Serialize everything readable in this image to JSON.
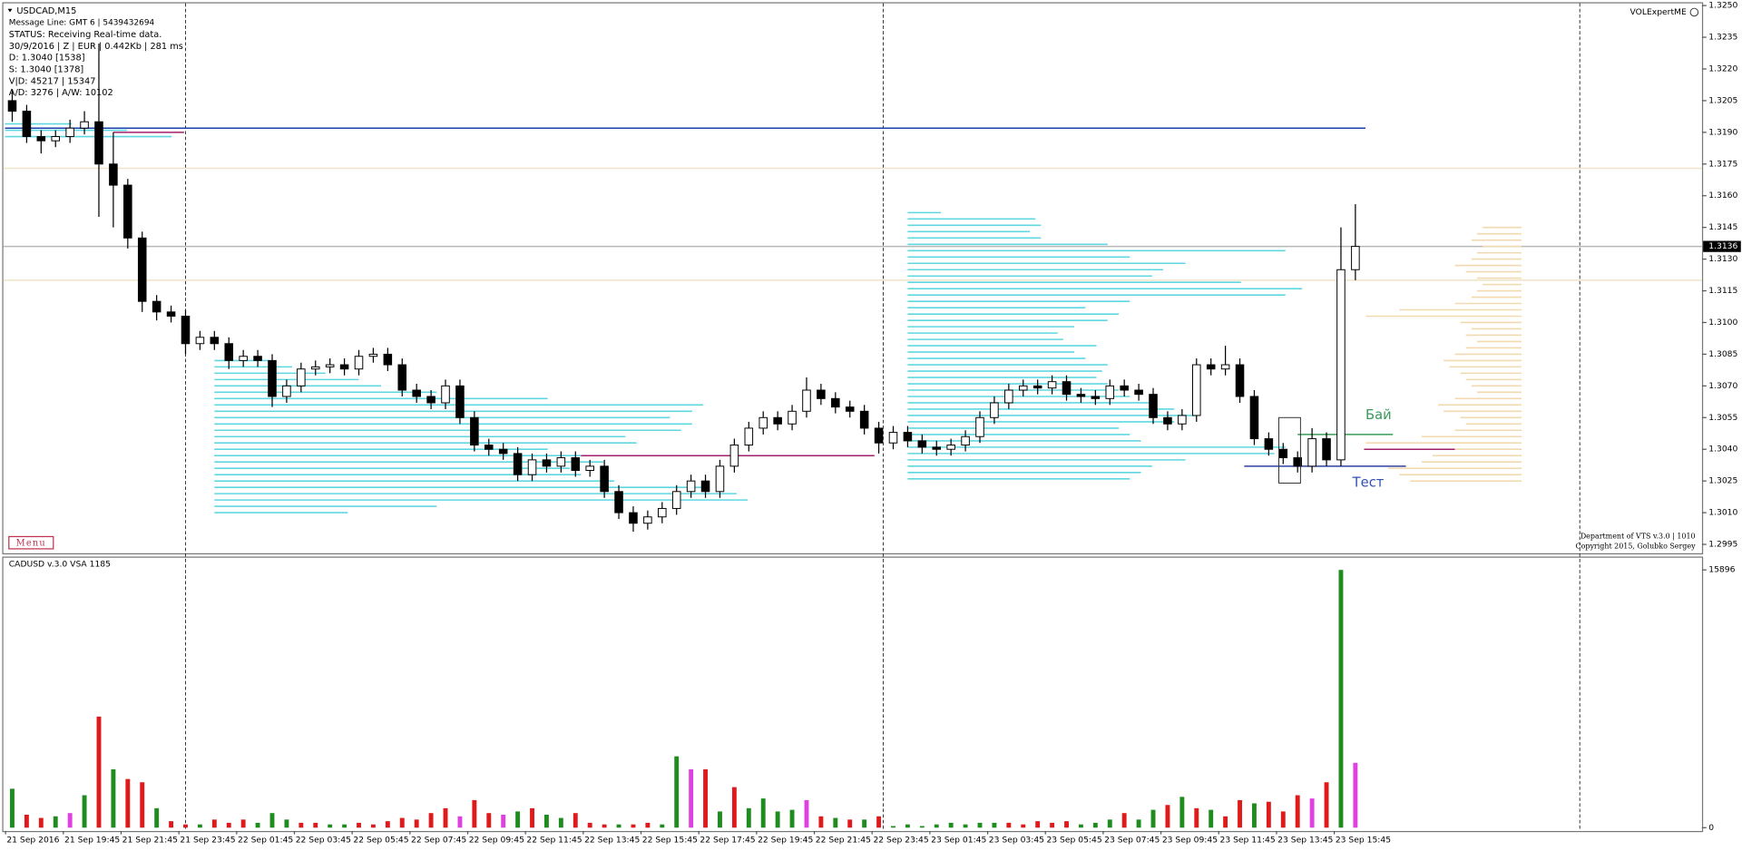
{
  "chart_data": {
    "type": "candlestick",
    "symbol": "USDCAD,M15",
    "info_lines": [
      "Message Line: GMT 6 | 5439432694",
      "STATUS:  Receiving Real-time data.",
      "30/9/2016 | Z | EUR | 0.442Kb | 281 ms",
      "D: 1.3040  [1538]",
      "S: 1.3040  [1378]",
      "V|D: 45217 | 15347",
      "A/D: 3276 | A/W: 10102"
    ],
    "menu_label": "Menu",
    "expert_label": "VOLExpertME",
    "footer_lines": [
      "Department of VTS  v.3.0 | 1010",
      "Copyright 2015, Golubko Sergey"
    ],
    "ylim": [
      1.2995,
      1.325
    ],
    "yticks": [
      {
        "value": 1.325,
        "label": "1.3250"
      },
      1.3235,
      {
        "value": 1.322,
        "label": "1.3220"
      },
      1.3205,
      {
        "value": 1.319,
        "label": "1.3190"
      },
      1.3175,
      {
        "value": 1.316,
        "label": "1.3160"
      },
      1.3145,
      {
        "value": 1.313,
        "label": "1.3130"
      },
      1.3115,
      {
        "value": 1.31,
        "label": "1.3100"
      },
      1.3085,
      {
        "value": 1.307,
        "label": "1.3070"
      },
      1.3055,
      {
        "value": 1.304,
        "label": "1.3040"
      },
      1.3025,
      {
        "value": 1.301,
        "label": "1.3010"
      },
      {
        "value": 1.2995,
        "label": "1.2995"
      }
    ],
    "last_price": 1.3136,
    "up_color": "#ffffff",
    "down_color": "#000000",
    "ohlc": [
      [
        1.3205,
        1.321,
        1.3195,
        1.32
      ],
      [
        1.32,
        1.3203,
        1.3185,
        1.3188
      ],
      [
        1.3188,
        1.3191,
        1.318,
        1.3186
      ],
      [
        1.3186,
        1.3191,
        1.3183,
        1.3188
      ],
      [
        1.3188,
        1.3196,
        1.3185,
        1.3192
      ],
      [
        1.3192,
        1.32,
        1.3189,
        1.3195
      ],
      [
        1.3195,
        1.3232,
        1.315,
        1.3175
      ],
      [
        1.3175,
        1.319,
        1.3145,
        1.3165
      ],
      [
        1.3165,
        1.3168,
        1.3135,
        1.314
      ],
      [
        1.314,
        1.3143,
        1.3105,
        1.311
      ],
      [
        1.311,
        1.3113,
        1.3101,
        1.3105
      ],
      [
        1.3105,
        1.3108,
        1.31,
        1.3103
      ],
      [
        1.3103,
        1.3106,
        1.3085,
        1.309
      ],
      [
        1.309,
        1.3096,
        1.3087,
        1.3093
      ],
      [
        1.3093,
        1.3096,
        1.3087,
        1.309
      ],
      [
        1.309,
        1.3093,
        1.3078,
        1.3082
      ],
      [
        1.3082,
        1.3087,
        1.3079,
        1.3084
      ],
      [
        1.3084,
        1.3087,
        1.3079,
        1.3082
      ],
      [
        1.3082,
        1.3085,
        1.306,
        1.3065
      ],
      [
        1.3065,
        1.3073,
        1.3062,
        1.307
      ],
      [
        1.307,
        1.3081,
        1.3067,
        1.3078
      ],
      [
        1.3078,
        1.3082,
        1.3075,
        1.3079
      ],
      [
        1.3079,
        1.3083,
        1.3076,
        1.308
      ],
      [
        1.308,
        1.3083,
        1.3075,
        1.3078
      ],
      [
        1.3078,
        1.3087,
        1.3075,
        1.3084
      ],
      [
        1.3084,
        1.3088,
        1.3081,
        1.3085
      ],
      [
        1.3085,
        1.3088,
        1.3077,
        1.308
      ],
      [
        1.308,
        1.3083,
        1.3065,
        1.3068
      ],
      [
        1.3068,
        1.3071,
        1.3062,
        1.3065
      ],
      [
        1.3065,
        1.3068,
        1.3059,
        1.3062
      ],
      [
        1.3062,
        1.3073,
        1.3059,
        1.307
      ],
      [
        1.307,
        1.3073,
        1.3052,
        1.3055
      ],
      [
        1.3055,
        1.3058,
        1.3039,
        1.3042
      ],
      [
        1.3042,
        1.3045,
        1.3037,
        1.304
      ],
      [
        1.304,
        1.3043,
        1.3035,
        1.3038
      ],
      [
        1.3038,
        1.3041,
        1.3025,
        1.3028
      ],
      [
        1.3028,
        1.3038,
        1.3025,
        1.3035
      ],
      [
        1.3035,
        1.3038,
        1.3029,
        1.3032
      ],
      [
        1.3032,
        1.3039,
        1.3029,
        1.3036
      ],
      [
        1.3036,
        1.3039,
        1.3027,
        1.303
      ],
      [
        1.303,
        1.3035,
        1.3027,
        1.3032
      ],
      [
        1.3032,
        1.3035,
        1.3017,
        1.302
      ],
      [
        1.302,
        1.3023,
        1.3007,
        1.301
      ],
      [
        1.301,
        1.3013,
        1.3001,
        1.3005
      ],
      [
        1.3005,
        1.3011,
        1.3002,
        1.3008
      ],
      [
        1.3008,
        1.3015,
        1.3005,
        1.3012
      ],
      [
        1.3012,
        1.3023,
        1.3009,
        1.302
      ],
      [
        1.302,
        1.3028,
        1.3017,
        1.3025
      ],
      [
        1.3025,
        1.3028,
        1.3017,
        1.302
      ],
      [
        1.302,
        1.3035,
        1.3017,
        1.3032
      ],
      [
        1.3032,
        1.3045,
        1.3029,
        1.3042
      ],
      [
        1.3042,
        1.3053,
        1.3039,
        1.305
      ],
      [
        1.305,
        1.3058,
        1.3047,
        1.3055
      ],
      [
        1.3055,
        1.3058,
        1.3049,
        1.3052
      ],
      [
        1.3052,
        1.3061,
        1.3049,
        1.3058
      ],
      [
        1.3058,
        1.3074,
        1.3055,
        1.3068
      ],
      [
        1.3068,
        1.3071,
        1.3061,
        1.3064
      ],
      [
        1.3064,
        1.3067,
        1.3057,
        1.306
      ],
      [
        1.306,
        1.3063,
        1.3055,
        1.3058
      ],
      [
        1.3058,
        1.3061,
        1.3047,
        1.305
      ],
      [
        1.305,
        1.3053,
        1.3038,
        1.3043
      ],
      [
        1.3043,
        1.3051,
        1.304,
        1.3048
      ],
      [
        1.3048,
        1.3051,
        1.3041,
        1.3044
      ],
      [
        1.3044,
        1.3047,
        1.3038,
        1.3041
      ],
      [
        1.3041,
        1.3044,
        1.3037,
        1.304
      ],
      [
        1.304,
        1.3045,
        1.3037,
        1.3042
      ],
      [
        1.3042,
        1.3049,
        1.3039,
        1.3046
      ],
      [
        1.3046,
        1.3058,
        1.3043,
        1.3055
      ],
      [
        1.3055,
        1.3065,
        1.3052,
        1.3062
      ],
      [
        1.3062,
        1.3071,
        1.3059,
        1.3068
      ],
      [
        1.3068,
        1.3073,
        1.3065,
        1.307
      ],
      [
        1.307,
        1.3073,
        1.3066,
        1.3069
      ],
      [
        1.3069,
        1.3075,
        1.3066,
        1.3072
      ],
      [
        1.3072,
        1.3075,
        1.3063,
        1.3066
      ],
      [
        1.3066,
        1.3069,
        1.3062,
        1.3065
      ],
      [
        1.3065,
        1.3068,
        1.3061,
        1.3064
      ],
      [
        1.3064,
        1.3073,
        1.3061,
        1.307
      ],
      [
        1.307,
        1.3073,
        1.3065,
        1.3068
      ],
      [
        1.3068,
        1.3071,
        1.3063,
        1.3066
      ],
      [
        1.3066,
        1.3069,
        1.3052,
        1.3055
      ],
      [
        1.3055,
        1.3058,
        1.3049,
        1.3052
      ],
      [
        1.3052,
        1.3059,
        1.3049,
        1.3056
      ],
      [
        1.3056,
        1.3083,
        1.3053,
        1.308
      ],
      [
        1.308,
        1.3083,
        1.3075,
        1.3078
      ],
      [
        1.3078,
        1.3089,
        1.3075,
        1.308
      ],
      [
        1.308,
        1.3083,
        1.3062,
        1.3065
      ],
      [
        1.3065,
        1.3068,
        1.3042,
        1.3045
      ],
      [
        1.3045,
        1.3048,
        1.3037,
        1.304
      ],
      [
        1.304,
        1.3043,
        1.3033,
        1.3036
      ],
      [
        1.3036,
        1.3039,
        1.3029,
        1.3032
      ],
      [
        1.3032,
        1.305,
        1.3029,
        1.3045
      ],
      [
        1.3045,
        1.3048,
        1.3032,
        1.3035
      ],
      [
        1.3035,
        1.3145,
        1.3032,
        1.3125
      ],
      [
        1.3125,
        1.3156,
        1.312,
        1.3136
      ]
    ],
    "xticks": [
      {
        "value": 0,
        "label": "21 Sep 2016"
      },
      {
        "value": 4,
        "label": "21 Sep 19:45"
      },
      {
        "value": 8,
        "label": "21 Sep 21:45"
      },
      {
        "value": 12,
        "label": "21 Sep 23:45"
      },
      {
        "value": 16,
        "label": "22 Sep 01:45"
      },
      {
        "value": 20,
        "label": "22 Sep 03:45"
      },
      {
        "value": 24,
        "label": "22 Sep 05:45"
      },
      {
        "value": 28,
        "label": "22 Sep 07:45"
      },
      {
        "value": 32,
        "label": "22 Sep 09:45"
      },
      {
        "value": 36,
        "label": "22 Sep 11:45"
      },
      {
        "value": 40,
        "label": "22 Sep 13:45"
      },
      {
        "value": 44,
        "label": "22 Sep 15:45"
      },
      {
        "value": 48,
        "label": "22 Sep 17:45"
      },
      {
        "value": 52,
        "label": "22 Sep 19:45"
      },
      {
        "value": 56,
        "label": "22 Sep 21:45"
      },
      {
        "value": 60,
        "label": "22 Sep 23:45"
      },
      {
        "value": 64,
        "label": "23 Sep 01:45"
      },
      {
        "value": 68,
        "label": "23 Sep 03:45"
      },
      {
        "value": 72,
        "label": "23 Sep 05:45"
      },
      {
        "value": 76,
        "label": "23 Sep 07:45"
      },
      {
        "value": 80,
        "label": "23 Sep 09:45"
      },
      {
        "value": 84,
        "label": "23 Sep 11:45"
      },
      {
        "value": 88,
        "label": "23 Sep 13:45"
      },
      {
        "value": 92,
        "label": "23 Sep 15:45"
      }
    ],
    "profiles": [
      {
        "color": "#5fd7e0",
        "anchor": -0.5,
        "direction": "right",
        "price_low": 1.3188,
        "step": 0.0003,
        "volumes": [
          150,
          110,
          60
        ]
      },
      {
        "color": "#5fd7e0",
        "anchor": 14,
        "direction": "right",
        "price_low": 1.301,
        "step": 0.0003,
        "volumes": [
          120,
          200,
          480,
          470,
          440,
          360,
          330,
          320,
          350,
          330,
          300,
          380,
          370,
          420,
          430,
          410,
          430,
          440,
          300,
          200,
          150,
          130,
          100,
          70,
          50
        ]
      },
      {
        "color": "#5fd7e0",
        "anchor": 62,
        "direction": "right",
        "price_low": 1.3026,
        "step": 0.0003,
        "volumes": [
          200,
          210,
          220,
          250,
          330,
          340,
          210,
          200,
          190,
          240,
          260,
          240,
          220,
          200,
          190,
          180,
          170,
          175,
          180,
          160,
          150,
          170,
          140,
          135,
          150,
          180,
          190,
          160,
          200,
          340,
          355,
          300,
          220,
          230,
          250,
          200,
          340,
          180,
          120,
          110,
          120,
          115,
          30
        ]
      },
      {
        "color": "#f2d9b0",
        "anchor": 104.5,
        "direction": "left",
        "price_low": 1.3025,
        "step": 0.0003,
        "volumes": [
          100,
          110,
          120,
          90,
          80,
          60,
          140,
          90,
          60,
          50,
          55,
          70,
          75,
          60,
          40,
          45,
          50,
          55,
          65,
          70,
          60,
          50,
          40,
          50,
          45,
          55,
          140,
          110,
          60,
          45,
          40,
          35,
          40,
          50,
          60,
          45,
          40,
          35,
          45,
          40,
          35
        ]
      }
    ],
    "levels": [
      {
        "price": 1.3173,
        "color": "#efe3c8"
      },
      {
        "price": 1.312,
        "color": "#efe3c8"
      },
      {
        "price": 1.3136,
        "color": "#b8b8b8"
      },
      {
        "price": 1.3192,
        "color": "#1f3fb0",
        "from": -0.5,
        "to": 93.7
      },
      {
        "price": 1.319,
        "color": "#a0206a",
        "from": 7,
        "to": 11.9
      },
      {
        "price": 1.3037,
        "color": "#a0206a",
        "from": 14,
        "to": 59.7
      },
      {
        "price": 1.304,
        "color": "#a0206a",
        "from": 93.6,
        "to": 104.5
      },
      {
        "price": 1.3032,
        "color": "#3040a0",
        "from": 85.3,
        "to": 96.5
      },
      {
        "price": 1.3047,
        "color": "#3a9a5a",
        "from": 89,
        "to": 95.6
      }
    ],
    "annotations": [
      {
        "text": "Бай",
        "color": "#3a9a5a",
        "index": 93.7,
        "price": 1.3056
      },
      {
        "text": "Тест",
        "color": "#3050b0",
        "index": 92.8,
        "price": 1.3024
      }
    ],
    "box": {
      "from": 87.7,
      "to": 89.2,
      "high": 1.3055,
      "low": 1.3024
    },
    "volume_pane": {
      "title": "CADUSD v.3.0 VSA 1185",
      "ylim": [
        0,
        15896
      ],
      "yticks": [
        15896,
        0
      ],
      "palette": [
        "#1e8c1e",
        "#e01a1a",
        "#e040e0"
      ],
      "values": [
        2400,
        800,
        600,
        700,
        900,
        2000,
        6850,
        3600,
        3000,
        2800,
        1200,
        400,
        200,
        200,
        500,
        300,
        500,
        300,
        900,
        500,
        300,
        300,
        200,
        200,
        300,
        200,
        400,
        600,
        500,
        900,
        1200,
        700,
        1700,
        900,
        800,
        1000,
        1200,
        800,
        600,
        900,
        300,
        200,
        200,
        200,
        300,
        200,
        4400,
        3600,
        3600,
        1000,
        2500,
        1200,
        1800,
        1000,
        1100,
        1700,
        700,
        600,
        500,
        500,
        700,
        100,
        200,
        100,
        200,
        300,
        200,
        300,
        300,
        300,
        200,
        400,
        300,
        400,
        200,
        300,
        500,
        900,
        500,
        1100,
        1400,
        1900,
        1200,
        1100,
        700,
        1700,
        1500,
        1600,
        1000,
        2000,
        1800,
        2800,
        15896,
        4000
      ],
      "colors": [
        0,
        1,
        1,
        0,
        2,
        0,
        1,
        0,
        1,
        1,
        0,
        1,
        1,
        0,
        1,
        1,
        1,
        0,
        0,
        0,
        1,
        1,
        0,
        0,
        1,
        1,
        1,
        1,
        1,
        1,
        1,
        2,
        1,
        1,
        2,
        0,
        1,
        0,
        0,
        1,
        1,
        1,
        0,
        1,
        1,
        0,
        0,
        2,
        1,
        0,
        1,
        0,
        0,
        0,
        0,
        2,
        1,
        0,
        1,
        0,
        1,
        0,
        0,
        0,
        0,
        0,
        0,
        0,
        0,
        1,
        1,
        1,
        1,
        1,
        0,
        0,
        0,
        1,
        0,
        0,
        1,
        0,
        1,
        0,
        1,
        1,
        0,
        1,
        1,
        1,
        2,
        1,
        0,
        2
      ]
    }
  }
}
